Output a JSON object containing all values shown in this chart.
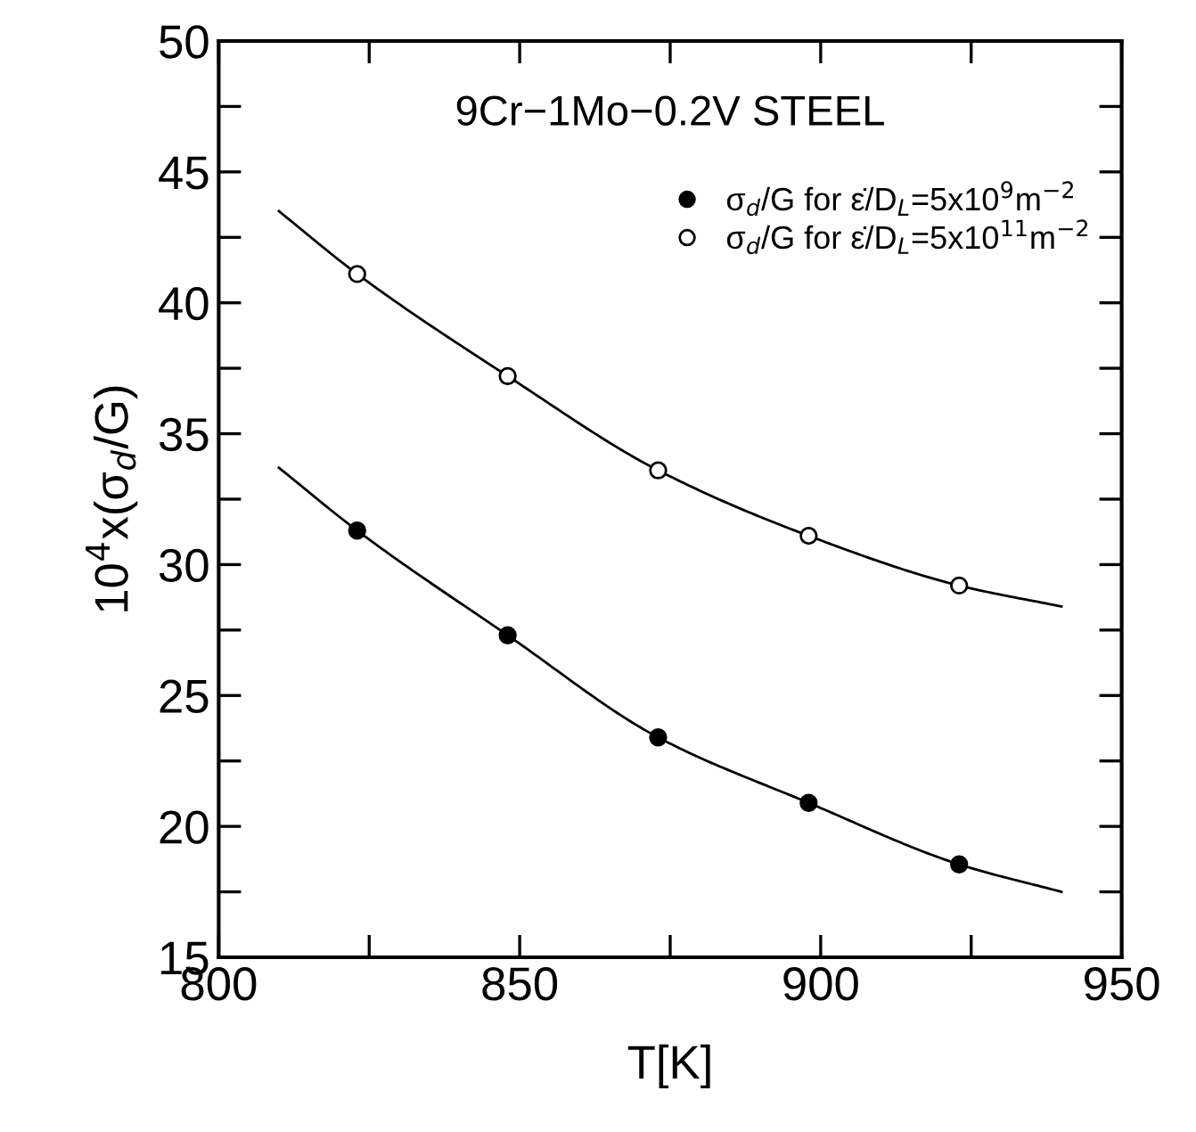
{
  "chart_data": {
    "type": "scatter",
    "title": "9Cr−1Mo−0.2V STEEL",
    "xlabel": "T[K]",
    "ylabel": "10$^{4}$x(σ$_{d}$/G)",
    "x": [
      823,
      848,
      873,
      898,
      923
    ],
    "series": [
      {
        "name": "σ$_{d}$/G for ε̇/D$_{L}$=5x10$^{9}$m$^{−2}$",
        "color": "#000000",
        "values": [
          31.3,
          27.3,
          23.4,
          20.9,
          18.55
        ]
      },
      {
        "name": "σ$_{d}$/G for ε̇/D$_{L}$=5x10$^{11}$m$^{−2}$",
        "color": "#ffffff",
        "values": [
          41.1,
          37.2,
          33.6,
          31.1,
          29.2
        ]
      },
      {
        "type": "line",
        "marker": "none",
        "color": "#000000",
        "x": [
          810,
          823,
          848,
          873,
          898,
          923,
          940
        ],
        "values": [
          33.7,
          31.3,
          27.3,
          23.4,
          20.9,
          18.55,
          17.5
        ]
      },
      {
        "type": "line",
        "marker": "none",
        "color": "#000000",
        "x": [
          810,
          823,
          848,
          873,
          898,
          923,
          940
        ],
        "values": [
          43.5,
          41.1,
          37.2,
          33.6,
          31.1,
          29.2,
          28.4
        ]
      }
    ],
    "xlim": [
      800,
      950
    ],
    "ylim": [
      15,
      50
    ],
    "xticks": [
      800,
      {
        "value": 825,
        "label": null
      },
      850,
      {
        "value": 875,
        "label": null
      },
      900,
      {
        "value": 925,
        "label": null
      },
      950
    ],
    "yticks": [
      15,
      {
        "value": 17.5,
        "label": null
      },
      20,
      {
        "value": 22.5,
        "label": null
      },
      25,
      {
        "value": 27.5,
        "label": null
      },
      30,
      {
        "value": 32.5,
        "label": null
      },
      35,
      {
        "value": 37.5,
        "label": null
      },
      40,
      {
        "value": 42.5,
        "label": null
      },
      45,
      {
        "value": 47.5,
        "label": null
      },
      50
    ],
    "marker": "circle",
    "line_style": "solid",
    "legend": "top right",
    "grid": false
  }
}
